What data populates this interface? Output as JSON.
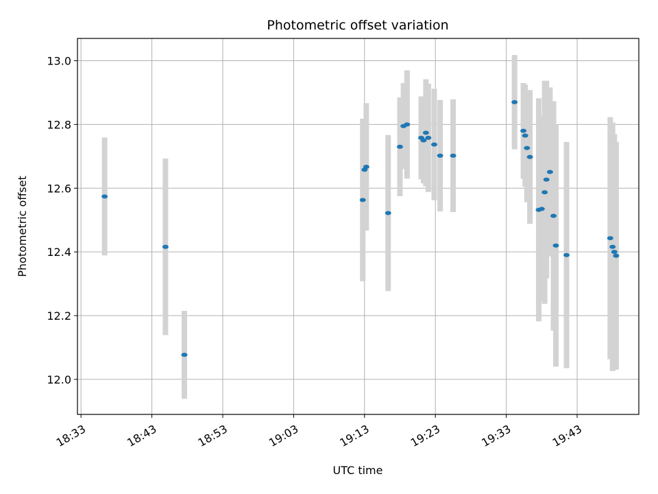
{
  "chart_data": {
    "type": "scatter",
    "title": "Photometric offset variation",
    "xlabel": "UTC time",
    "ylabel": "Photometric offset",
    "x_range_minutes_since_midnight": [
      1112.5,
      1191.7
    ],
    "ylim": [
      11.89,
      13.07
    ],
    "x_tick_labels": [
      "18:33",
      "18:43",
      "18:53",
      "19:03",
      "19:13",
      "19:23",
      "19:33",
      "19:43"
    ],
    "x_tick_values_minutes": [
      1113,
      1123,
      1133,
      1143,
      1153,
      1163,
      1173,
      1183
    ],
    "y_tick_labels": [
      "12.0",
      "12.2",
      "12.4",
      "12.6",
      "12.8",
      "13.0"
    ],
    "y_tick_values": [
      12.0,
      12.2,
      12.4,
      12.6,
      12.8,
      13.0
    ],
    "grid": true,
    "marker_color": "#1f77b4",
    "errorbar_color": "#d3d3d3",
    "points": [
      {
        "x": "18:36:20",
        "y": 12.574,
        "err": 0.185
      },
      {
        "x": "18:44:55",
        "y": 12.416,
        "err": 0.277
      },
      {
        "x": "18:47:35",
        "y": 12.077,
        "err": 0.138
      },
      {
        "x": "19:12:45",
        "y": 12.563,
        "err": 0.255
      },
      {
        "x": "19:13:00",
        "y": 12.658,
        "err": 0.16
      },
      {
        "x": "19:13:15",
        "y": 12.667,
        "err": 0.2
      },
      {
        "x": "19:16:20",
        "y": 12.522,
        "err": 0.245
      },
      {
        "x": "19:18:00",
        "y": 12.73,
        "err": 0.155
      },
      {
        "x": "19:18:30",
        "y": 12.795,
        "err": 0.135
      },
      {
        "x": "19:19:00",
        "y": 12.8,
        "err": 0.17
      },
      {
        "x": "19:21:00",
        "y": 12.758,
        "err": 0.13
      },
      {
        "x": "19:21:20",
        "y": 12.75,
        "err": 0.135
      },
      {
        "x": "19:21:40",
        "y": 12.774,
        "err": 0.168
      },
      {
        "x": "19:22:00",
        "y": 12.758,
        "err": 0.17
      },
      {
        "x": "19:22:50",
        "y": 12.737,
        "err": 0.175
      },
      {
        "x": "19:23:40",
        "y": 12.702,
        "err": 0.175
      },
      {
        "x": "19:25:30",
        "y": 12.702,
        "err": 0.177
      },
      {
        "x": "19:34:10",
        "y": 12.87,
        "err": 0.148
      },
      {
        "x": "19:35:25",
        "y": 12.78,
        "err": 0.15
      },
      {
        "x": "19:35:40",
        "y": 12.765,
        "err": 0.16
      },
      {
        "x": "19:35:55",
        "y": 12.726,
        "err": 0.17
      },
      {
        "x": "19:36:20",
        "y": 12.698,
        "err": 0.21
      },
      {
        "x": "19:37:35",
        "y": 12.532,
        "err": 0.35
      },
      {
        "x": "19:38:00",
        "y": 12.535,
        "err": 0.29
      },
      {
        "x": "19:38:25",
        "y": 12.587,
        "err": 0.35
      },
      {
        "x": "19:38:40",
        "y": 12.627,
        "err": 0.31
      },
      {
        "x": "19:39:10",
        "y": 12.651,
        "err": 0.265
      },
      {
        "x": "19:39:40",
        "y": 12.513,
        "err": 0.36
      },
      {
        "x": "19:40:00",
        "y": 12.42,
        "err": 0.38
      },
      {
        "x": "19:41:30",
        "y": 12.39,
        "err": 0.355
      },
      {
        "x": "19:47:40",
        "y": 12.443,
        "err": 0.38
      },
      {
        "x": "19:48:00",
        "y": 12.416,
        "err": 0.39
      },
      {
        "x": "19:48:15",
        "y": 12.4,
        "err": 0.37
      },
      {
        "x": "19:48:30",
        "y": 12.388,
        "err": 0.357
      }
    ]
  }
}
